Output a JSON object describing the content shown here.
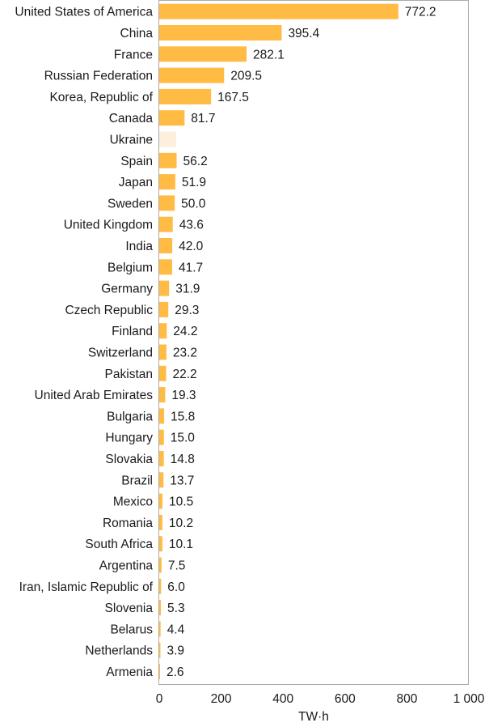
{
  "chart_data": {
    "type": "bar",
    "orientation": "horizontal",
    "xlabel": "TW·h",
    "xlim": [
      0,
      1000
    ],
    "xticks": [
      0,
      200,
      400,
      600,
      800,
      1000
    ],
    "xtick_labels": [
      "0",
      "200",
      "400",
      "600",
      "800",
      "1 000"
    ],
    "grid": false,
    "colors": {
      "bar": "#ffbb44",
      "bar_highlight": "#fdeedd",
      "frame": "#aaaaaa",
      "text": "#1a1a1a"
    },
    "categories": [
      "United States of America",
      "China",
      "France",
      "Russian Federation",
      "Korea, Republic of",
      "Canada",
      "Ukraine",
      "Spain",
      "Japan",
      "Sweden",
      "United Kingdom",
      "India",
      "Belgium",
      "Germany",
      "Czech Republic",
      "Finland",
      "Switzerland",
      "Pakistan",
      "United Arab Emirates",
      "Bulgaria",
      "Hungary",
      "Slovakia",
      "Brazil",
      "Mexico",
      "Romania",
      "South Africa",
      "Argentina",
      "Iran, Islamic Republic of",
      "Slovenia",
      "Belarus",
      "Netherlands",
      "Armenia"
    ],
    "values": [
      772.2,
      395.4,
      282.1,
      209.5,
      167.5,
      81.7,
      55,
      56.2,
      51.9,
      50.0,
      43.6,
      42.0,
      41.7,
      31.9,
      29.3,
      24.2,
      23.2,
      22.2,
      19.3,
      15.8,
      15.0,
      14.8,
      13.7,
      10.5,
      10.2,
      10.1,
      7.5,
      6.0,
      5.3,
      4.4,
      3.9,
      2.6
    ],
    "value_labels": [
      "772.2",
      "395.4",
      "282.1",
      "209.5",
      "167.5",
      "81.7",
      "",
      "56.2",
      "51.9",
      "50.0",
      "43.6",
      "42.0",
      "41.7",
      "31.9",
      "29.3",
      "24.2",
      "23.2",
      "22.2",
      "19.3",
      "15.8",
      "15.0",
      "14.8",
      "13.7",
      "10.5",
      "10.2",
      "10.1",
      "7.5",
      "6.0",
      "5.3",
      "4.4",
      "3.9",
      "2.6"
    ],
    "highlighted": [
      "Ukraine"
    ]
  }
}
